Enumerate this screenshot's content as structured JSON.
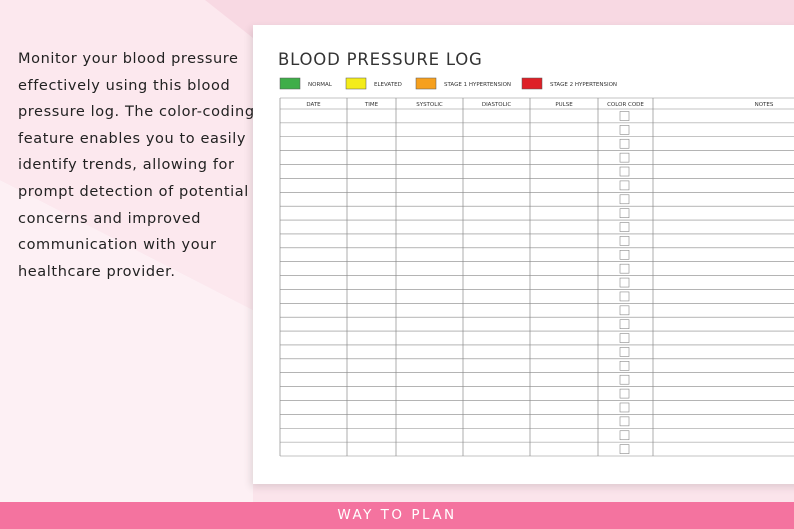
{
  "description": {
    "lines": [
      "Monitor your blood pressure",
      "effectively using this blood",
      "pressure log. The color-coding",
      "feature enables you to easily",
      "identify trends, allowing for",
      "prompt detection of potential",
      "concerns and improved",
      "communication with your",
      "healthcare provider."
    ]
  },
  "log": {
    "title": "BLOOD PRESSURE LOG",
    "legend": [
      {
        "label": "NORMAL",
        "color": "#3fae49"
      },
      {
        "label": "ELEVATED",
        "color": "#f4ec1a"
      },
      {
        "label": "STAGE 1 HYPERTENSION",
        "color": "#f6a01e"
      },
      {
        "label": "STAGE 2 HYPERTENSION",
        "color": "#de2027"
      }
    ],
    "columns": [
      "DATE",
      "TIME",
      "SYSTOLIC",
      "DIASTOLIC",
      "PULSE",
      "COLOR CODE",
      "NOTES"
    ]
  },
  "footer": {
    "brand": "WAY TO PLAN"
  }
}
